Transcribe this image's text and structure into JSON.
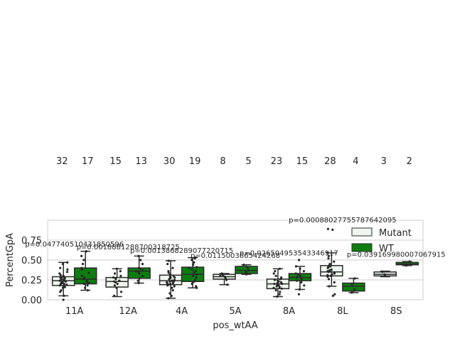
{
  "chart_data": {
    "type": "box",
    "xlabel": "pos_wtAA",
    "ylabel": "PercentGpA",
    "ylim": [
      0,
      1.0
    ],
    "yticks": [
      0.0,
      0.25,
      0.5,
      0.75
    ],
    "ytick_labels": [
      "0.00",
      "0.25",
      "0.50",
      "0.75"
    ],
    "grid": true,
    "legend_position": "upper right",
    "categories": [
      "11A",
      "12A",
      "4A",
      "5A",
      "8A",
      "8L",
      "8S"
    ],
    "series": [
      {
        "name": "Mutant",
        "color": "#eef7ee",
        "counts": [
          "32",
          "15",
          "30",
          "8",
          "23",
          "28",
          "3"
        ],
        "boxes": [
          {
            "whislo": 0.05,
            "q1": 0.18,
            "med": 0.24,
            "q3": 0.29,
            "whishi": 0.47
          },
          {
            "whislo": 0.04,
            "q1": 0.16,
            "med": 0.23,
            "q3": 0.28,
            "whishi": 0.39
          },
          {
            "whislo": 0.02,
            "q1": 0.19,
            "med": 0.24,
            "q3": 0.31,
            "whishi": 0.49
          },
          {
            "whislo": 0.19,
            "q1": 0.26,
            "med": 0.29,
            "q3": 0.32,
            "whishi": 0.33
          },
          {
            "whislo": 0.04,
            "q1": 0.14,
            "med": 0.2,
            "q3": 0.26,
            "whishi": 0.39
          },
          {
            "whislo": 0.17,
            "q1": 0.3,
            "med": 0.35,
            "q3": 0.43,
            "whishi": 0.59
          },
          {
            "whislo": 0.29,
            "q1": 0.3,
            "med": 0.32,
            "q3": 0.35,
            "whishi": 0.36
          }
        ],
        "points": [
          [
            0.0,
            0.05,
            0.1,
            0.12,
            0.15,
            0.17,
            0.18,
            0.19,
            0.2,
            0.21,
            0.22,
            0.23,
            0.24,
            0.24,
            0.25,
            0.26,
            0.27,
            0.28,
            0.29,
            0.3,
            0.31,
            0.33,
            0.35,
            0.38,
            0.4,
            0.45,
            0.47,
            0.2,
            0.22,
            0.26,
            0.16,
            0.28
          ],
          [
            0.05,
            0.1,
            0.15,
            0.18,
            0.2,
            0.22,
            0.23,
            0.24,
            0.26,
            0.27,
            0.28,
            0.3,
            0.33,
            0.36,
            0.39
          ],
          [
            0.02,
            0.05,
            0.08,
            0.12,
            0.15,
            0.18,
            0.19,
            0.2,
            0.21,
            0.22,
            0.23,
            0.24,
            0.24,
            0.25,
            0.26,
            0.27,
            0.28,
            0.29,
            0.3,
            0.31,
            0.32,
            0.34,
            0.36,
            0.4,
            0.45,
            0.49,
            0.21,
            0.23,
            0.28,
            0.17
          ],
          [
            0.19,
            0.25,
            0.27,
            0.29,
            0.3,
            0.31,
            0.32,
            0.33
          ],
          [
            0.04,
            0.07,
            0.1,
            0.12,
            0.14,
            0.15,
            0.17,
            0.18,
            0.19,
            0.2,
            0.2,
            0.21,
            0.22,
            0.23,
            0.24,
            0.25,
            0.26,
            0.28,
            0.3,
            0.33,
            0.36,
            0.39,
            0.16
          ],
          [
            0.05,
            0.07,
            0.17,
            0.22,
            0.26,
            0.29,
            0.3,
            0.31,
            0.32,
            0.33,
            0.34,
            0.35,
            0.35,
            0.36,
            0.37,
            0.38,
            0.4,
            0.42,
            0.43,
            0.45,
            0.48,
            0.52,
            0.55,
            0.59,
            0.88,
            0.89,
            0.3,
            0.41
          ],
          [
            0.3,
            0.32,
            0.35
          ]
        ]
      },
      {
        "name": "WT",
        "color": "#0e7d10",
        "counts": [
          "17",
          "13",
          "19",
          "5",
          "15",
          "4",
          "2"
        ],
        "boxes": [
          {
            "whislo": 0.12,
            "q1": 0.2,
            "med": 0.26,
            "q3": 0.4,
            "whishi": 0.61
          },
          {
            "whislo": 0.21,
            "q1": 0.27,
            "med": 0.36,
            "q3": 0.4,
            "whishi": 0.55
          },
          {
            "whislo": 0.15,
            "q1": 0.23,
            "med": 0.32,
            "q3": 0.41,
            "whishi": 0.53
          },
          {
            "whislo": 0.32,
            "q1": 0.33,
            "med": 0.37,
            "q3": 0.42,
            "whishi": 0.44
          },
          {
            "whislo": 0.13,
            "q1": 0.24,
            "med": 0.28,
            "q3": 0.33,
            "whishi": 0.42
          },
          {
            "whislo": 0.09,
            "q1": 0.11,
            "med": 0.17,
            "q3": 0.21,
            "whishi": 0.27
          },
          {
            "whislo": 0.43,
            "q1": 0.44,
            "med": 0.45,
            "q3": 0.47,
            "whishi": 0.48
          }
        ],
        "points": [
          [
            0.12,
            0.15,
            0.18,
            0.2,
            0.21,
            0.22,
            0.24,
            0.26,
            0.28,
            0.3,
            0.34,
            0.38,
            0.4,
            0.45,
            0.5,
            0.55,
            0.61
          ],
          [
            0.21,
            0.24,
            0.27,
            0.3,
            0.33,
            0.35,
            0.36,
            0.37,
            0.39,
            0.4,
            0.45,
            0.5,
            0.55
          ],
          [
            0.15,
            0.17,
            0.2,
            0.22,
            0.23,
            0.25,
            0.28,
            0.3,
            0.32,
            0.34,
            0.36,
            0.38,
            0.4,
            0.41,
            0.44,
            0.47,
            0.5,
            0.52,
            0.53
          ],
          [
            0.32,
            0.35,
            0.37,
            0.4,
            0.44
          ],
          [
            0.07,
            0.13,
            0.18,
            0.22,
            0.24,
            0.26,
            0.28,
            0.29,
            0.3,
            0.32,
            0.33,
            0.36,
            0.39,
            0.42,
            0.5
          ],
          [
            0.09,
            0.13,
            0.19,
            0.27
          ],
          [
            0.43,
            0.48
          ]
        ]
      }
    ],
    "pvalues": [
      {
        "category": "11A",
        "text": "p=0.047740510431850596"
      },
      {
        "category": "12A",
        "text": "p=0.0018881288700318725"
      },
      {
        "category": "4A",
        "text": "p=0.0013868289077220715"
      },
      {
        "category": "5A",
        "text": "p=0.0115003665424268"
      },
      {
        "category": "8A",
        "text": "p=0.026504953543346917"
      },
      {
        "category": "8L",
        "text": "p=0.00088027755787642095"
      },
      {
        "category": "8S",
        "text": "p=0.039169980007067915"
      }
    ],
    "colors": {
      "mutant": "#eef7ee",
      "wt": "#0e7d10",
      "box_edge": "#2b2b2b",
      "grid": "#cccccc",
      "text": "#262626",
      "point": "#262626"
    }
  }
}
